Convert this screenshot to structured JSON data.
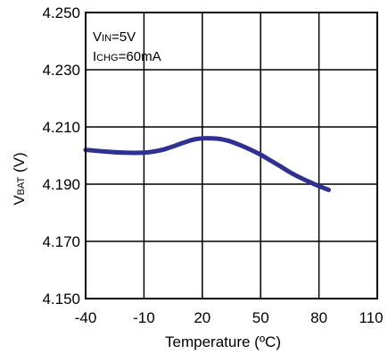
{
  "chart_data": {
    "type": "line",
    "title": "",
    "xlabel": "Temperature (ºC)",
    "ylabel": {
      "main": "V",
      "sub": "BAT",
      "unit": " (V)"
    },
    "xlim": [
      -40,
      110
    ],
    "ylim": [
      4.15,
      4.25
    ],
    "xticks": [
      -40,
      -10,
      20,
      50,
      80,
      110
    ],
    "xtick_labels": [
      "-40",
      "-10",
      "20",
      "50",
      "80",
      "110"
    ],
    "yticks": [
      4.15,
      4.17,
      4.19,
      4.21,
      4.23,
      4.25
    ],
    "ytick_labels": [
      "4.150",
      "4.170",
      "4.190",
      "4.210",
      "4.230",
      "4.250"
    ],
    "grid": true,
    "annotations": [
      {
        "main": "V",
        "sub": "IN",
        "rest": "=5V"
      },
      {
        "main": "I",
        "sub": "CHG",
        "rest": "=60mA"
      }
    ],
    "series": [
      {
        "color": "#2e3192",
        "x": [
          -40,
          -30,
          -20,
          -10,
          -5,
          0,
          5,
          10,
          15,
          20,
          25,
          30,
          35,
          40,
          45,
          50,
          55,
          60,
          65,
          70,
          75,
          80,
          85
        ],
        "y": [
          4.202,
          4.2014,
          4.201,
          4.201,
          4.2014,
          4.2021,
          4.2032,
          4.2044,
          4.2055,
          4.206,
          4.206,
          4.2057,
          4.2048,
          4.2035,
          4.202,
          4.2003,
          4.1983,
          4.1963,
          4.1942,
          4.1924,
          4.1908,
          4.1893,
          4.188
        ]
      }
    ]
  }
}
